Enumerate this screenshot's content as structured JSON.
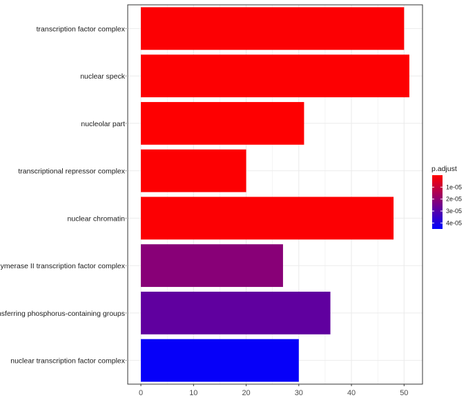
{
  "chart_data": {
    "type": "bar",
    "orientation": "horizontal",
    "categories": [
      "transcription factor complex",
      "nuclear speck",
      "nucleolar part",
      "transcriptional repressor complex",
      "nuclear chromatin",
      "RNA polymerase II transcription factor complex",
      "transferase complex, transferring phosphorus-containing groups",
      "nuclear transcription factor complex"
    ],
    "values": [
      50,
      51,
      31,
      20,
      48,
      27,
      36,
      30
    ],
    "p_adjust": [
      5e-07,
      4e-07,
      2e-07,
      3e-07,
      6e-07,
      2.1e-05,
      2.8e-05,
      4.4e-05
    ],
    "xlim": [
      -2.5,
      53.5
    ],
    "xticks": [
      "0",
      "10",
      "20",
      "30",
      "40",
      "50"
    ],
    "grid": true,
    "legend": {
      "title": "p.adjust",
      "position": "right",
      "labels": [
        "1e-05",
        "2e-05",
        "3e-05",
        "4e-05"
      ],
      "low_color": "#ff0000",
      "high_color": "#0000ff",
      "domain": [
        0,
        4.5e-05
      ]
    }
  }
}
